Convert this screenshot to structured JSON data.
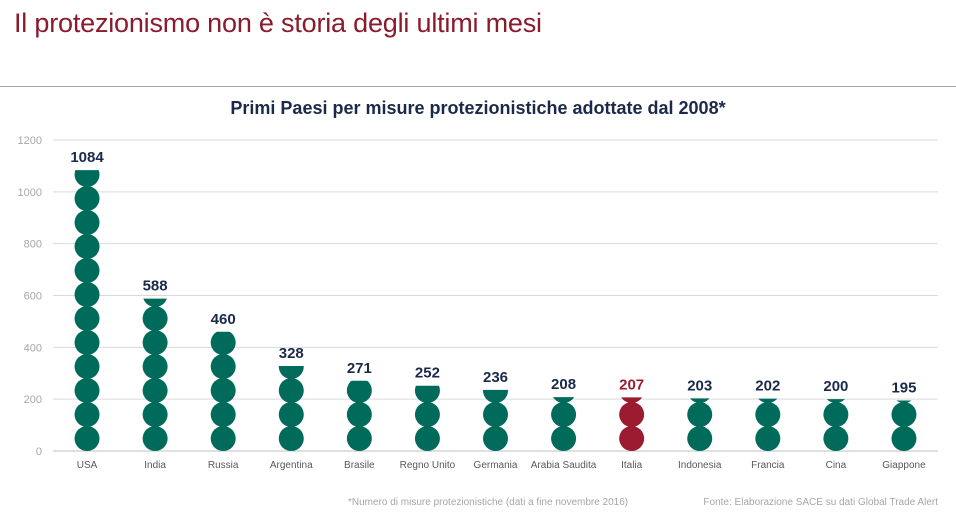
{
  "header": {
    "title": "Il protezionismo non è storia degli ultimi mesi"
  },
  "footer": {
    "footnote": "*Numero di misure protezionistiche (dati a fine novembre 2016)",
    "source": "Fonte: Elaborazione SACE su dati Global Trade Alert"
  },
  "chart_data": {
    "type": "bar",
    "title": "Primi Paesi per misure protezionistiche adottate dal 2008*",
    "xlabel": "",
    "ylabel": "",
    "ylim": [
      0,
      1200
    ],
    "yticks": [
      0,
      200,
      400,
      600,
      800,
      1000,
      1200
    ],
    "grid": true,
    "categories": [
      "USA",
      "India",
      "Russia",
      "Argentina",
      "Brasile",
      "Regno Unito",
      "Germania",
      "Arabia Saudita",
      "Italia",
      "Indonesia",
      "Francia",
      "Cina",
      "Giappone"
    ],
    "values": [
      1084,
      588,
      460,
      328,
      271,
      252,
      236,
      208,
      207,
      203,
      202,
      200,
      195
    ],
    "colors": {
      "default": "#006b5a",
      "highlight": "#9b1b30",
      "highlight_category": "Italia",
      "default_label": "#1b2a4a",
      "highlight_label": "#9b1b30",
      "axis_text": "#a6a6a6",
      "grid": "#d9d9d9"
    }
  }
}
